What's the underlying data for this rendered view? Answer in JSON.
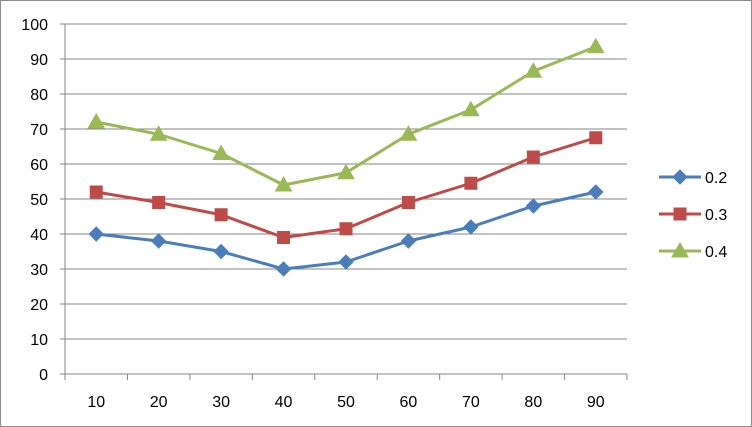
{
  "chart_data": {
    "type": "line",
    "categories": [
      10,
      20,
      30,
      40,
      50,
      60,
      70,
      80,
      90
    ],
    "series": [
      {
        "name": "0.2",
        "values": [
          40,
          38,
          35,
          30,
          32,
          38,
          42,
          48,
          52
        ],
        "color": "#4a7ebb",
        "marker": "diamond"
      },
      {
        "name": "0.3",
        "values": [
          52,
          49,
          45.5,
          39,
          41.5,
          49,
          54.5,
          62,
          67.5
        ],
        "color": "#be4b48",
        "marker": "square"
      },
      {
        "name": "0.4",
        "values": [
          72,
          68.5,
          63,
          54,
          57.5,
          68.5,
          75.5,
          86.5,
          93.5
        ],
        "color": "#98b954",
        "marker": "triangle"
      }
    ],
    "title": "",
    "xlabel": "",
    "ylabel": "",
    "ylim": [
      0,
      100
    ],
    "yticks": [
      0,
      10,
      20,
      30,
      40,
      50,
      60,
      70,
      80,
      90,
      100
    ],
    "grid": "horizontal",
    "legend": "right"
  }
}
